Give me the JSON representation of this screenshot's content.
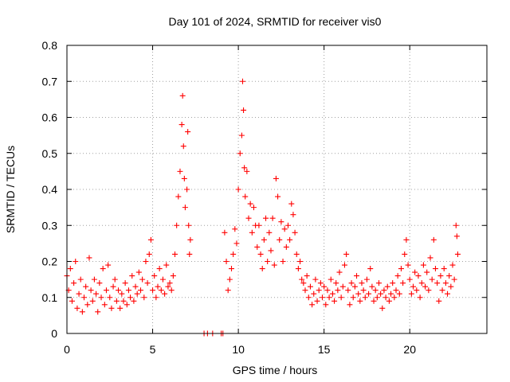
{
  "chart_data": {
    "type": "scatter",
    "title": "Day 101 of 2024, SRMTID for receiver vis0",
    "xlabel": "GPS time / hours",
    "ylabel": "SRMTID / TECUs",
    "xlim": [
      0,
      24.5
    ],
    "ylim": [
      0,
      0.8
    ],
    "xticks": [
      0,
      5,
      10,
      15,
      20
    ],
    "xtick_labels": [
      "0",
      "5",
      "10",
      "15",
      "20"
    ],
    "yticks": [
      0,
      0.1,
      0.2,
      0.3,
      0.4,
      0.5,
      0.6,
      0.7,
      0.8
    ],
    "ytick_labels": [
      "0",
      "0.1",
      "0.2",
      "0.3",
      "0.4",
      "0.5",
      "0.6",
      "0.7",
      "0.8"
    ],
    "grid": true,
    "marker": "+",
    "color": "#ff0000",
    "series": [
      {
        "name": "vis0",
        "points": [
          [
            0.0,
            0.16
          ],
          [
            0.1,
            0.12
          ],
          [
            0.2,
            0.18
          ],
          [
            0.3,
            0.09
          ],
          [
            0.4,
            0.14
          ],
          [
            0.5,
            0.2
          ],
          [
            0.6,
            0.07
          ],
          [
            0.7,
            0.11
          ],
          [
            0.8,
            0.15
          ],
          [
            0.9,
            0.06
          ],
          [
            1.0,
            0.1
          ],
          [
            1.1,
            0.13
          ],
          [
            1.2,
            0.08
          ],
          [
            1.3,
            0.21
          ],
          [
            1.4,
            0.12
          ],
          [
            1.5,
            0.09
          ],
          [
            1.6,
            0.15
          ],
          [
            1.7,
            0.11
          ],
          [
            1.8,
            0.06
          ],
          [
            1.9,
            0.14
          ],
          [
            2.0,
            0.1
          ],
          [
            2.1,
            0.18
          ],
          [
            2.2,
            0.08
          ],
          [
            2.3,
            0.12
          ],
          [
            2.4,
            0.19
          ],
          [
            2.5,
            0.1
          ],
          [
            2.6,
            0.07
          ],
          [
            2.7,
            0.13
          ],
          [
            2.8,
            0.15
          ],
          [
            2.9,
            0.09
          ],
          [
            3.0,
            0.12
          ],
          [
            3.1,
            0.07
          ],
          [
            3.2,
            0.11
          ],
          [
            3.3,
            0.09
          ],
          [
            3.4,
            0.14
          ],
          [
            3.5,
            0.08
          ],
          [
            3.6,
            0.12
          ],
          [
            3.7,
            0.1
          ],
          [
            3.8,
            0.16
          ],
          [
            3.9,
            0.09
          ],
          [
            4.0,
            0.13
          ],
          [
            4.1,
            0.11
          ],
          [
            4.2,
            0.17
          ],
          [
            4.3,
            0.12
          ],
          [
            4.4,
            0.15
          ],
          [
            4.5,
            0.1
          ],
          [
            4.6,
            0.2
          ],
          [
            4.7,
            0.14
          ],
          [
            4.8,
            0.22
          ],
          [
            4.9,
            0.26
          ],
          [
            5.0,
            0.12
          ],
          [
            5.1,
            0.16
          ],
          [
            5.2,
            0.1
          ],
          [
            5.3,
            0.13
          ],
          [
            5.4,
            0.18
          ],
          [
            5.5,
            0.12
          ],
          [
            5.6,
            0.15
          ],
          [
            5.7,
            0.11
          ],
          [
            5.8,
            0.19
          ],
          [
            5.9,
            0.13
          ],
          [
            6.0,
            0.14
          ],
          [
            6.1,
            0.12
          ],
          [
            6.2,
            0.16
          ],
          [
            6.3,
            0.22
          ],
          [
            6.4,
            0.3
          ],
          [
            6.5,
            0.38
          ],
          [
            6.6,
            0.45
          ],
          [
            6.7,
            0.58
          ],
          [
            6.75,
            0.66
          ],
          [
            6.8,
            0.52
          ],
          [
            6.85,
            0.43
          ],
          [
            6.9,
            0.35
          ],
          [
            7.0,
            0.4
          ],
          [
            7.05,
            0.56
          ],
          [
            7.1,
            0.3
          ],
          [
            7.15,
            0.22
          ],
          [
            7.2,
            0.26
          ],
          [
            8.0,
            0.0
          ],
          [
            8.2,
            0.0
          ],
          [
            8.5,
            0.0
          ],
          [
            9.0,
            0.0
          ],
          [
            9.1,
            0.0
          ],
          [
            9.2,
            0.28
          ],
          [
            9.3,
            0.2
          ],
          [
            9.4,
            0.12
          ],
          [
            9.5,
            0.15
          ],
          [
            9.6,
            0.18
          ],
          [
            9.7,
            0.22
          ],
          [
            9.8,
            0.29
          ],
          [
            9.9,
            0.25
          ],
          [
            10.0,
            0.4
          ],
          [
            10.1,
            0.5
          ],
          [
            10.2,
            0.55
          ],
          [
            10.25,
            0.7
          ],
          [
            10.3,
            0.62
          ],
          [
            10.35,
            0.46
          ],
          [
            10.4,
            0.38
          ],
          [
            10.5,
            0.45
          ],
          [
            10.6,
            0.32
          ],
          [
            10.7,
            0.36
          ],
          [
            10.8,
            0.28
          ],
          [
            10.9,
            0.35
          ],
          [
            11.0,
            0.3
          ],
          [
            11.1,
            0.24
          ],
          [
            11.2,
            0.3
          ],
          [
            11.3,
            0.22
          ],
          [
            11.4,
            0.18
          ],
          [
            11.5,
            0.26
          ],
          [
            11.6,
            0.32
          ],
          [
            11.7,
            0.2
          ],
          [
            11.8,
            0.28
          ],
          [
            11.9,
            0.23
          ],
          [
            12.0,
            0.32
          ],
          [
            12.1,
            0.19
          ],
          [
            12.2,
            0.43
          ],
          [
            12.3,
            0.38
          ],
          [
            12.4,
            0.26
          ],
          [
            12.5,
            0.31
          ],
          [
            12.6,
            0.2
          ],
          [
            12.7,
            0.29
          ],
          [
            12.8,
            0.24
          ],
          [
            12.9,
            0.3
          ],
          [
            13.0,
            0.26
          ],
          [
            13.1,
            0.36
          ],
          [
            13.2,
            0.33
          ],
          [
            13.3,
            0.28
          ],
          [
            13.4,
            0.22
          ],
          [
            13.5,
            0.18
          ],
          [
            13.6,
            0.2
          ],
          [
            13.7,
            0.15
          ],
          [
            13.8,
            0.14
          ],
          [
            13.9,
            0.12
          ],
          [
            14.0,
            0.16
          ],
          [
            14.1,
            0.1
          ],
          [
            14.2,
            0.13
          ],
          [
            14.3,
            0.08
          ],
          [
            14.4,
            0.11
          ],
          [
            14.5,
            0.15
          ],
          [
            14.6,
            0.09
          ],
          [
            14.7,
            0.12
          ],
          [
            14.8,
            0.14
          ],
          [
            14.9,
            0.1
          ],
          [
            15.0,
            0.13
          ],
          [
            15.1,
            0.08
          ],
          [
            15.2,
            0.12
          ],
          [
            15.3,
            0.1
          ],
          [
            15.4,
            0.15
          ],
          [
            15.5,
            0.11
          ],
          [
            15.6,
            0.09
          ],
          [
            15.7,
            0.14
          ],
          [
            15.8,
            0.12
          ],
          [
            15.9,
            0.17
          ],
          [
            16.0,
            0.1
          ],
          [
            16.1,
            0.13
          ],
          [
            16.2,
            0.19
          ],
          [
            16.3,
            0.22
          ],
          [
            16.4,
            0.12
          ],
          [
            16.5,
            0.08
          ],
          [
            16.6,
            0.14
          ],
          [
            16.7,
            0.1
          ],
          [
            16.8,
            0.13
          ],
          [
            16.9,
            0.16
          ],
          [
            17.0,
            0.11
          ],
          [
            17.1,
            0.09
          ],
          [
            17.2,
            0.14
          ],
          [
            17.3,
            0.12
          ],
          [
            17.4,
            0.1
          ],
          [
            17.5,
            0.15
          ],
          [
            17.6,
            0.11
          ],
          [
            17.7,
            0.18
          ],
          [
            17.8,
            0.13
          ],
          [
            17.9,
            0.09
          ],
          [
            18.0,
            0.12
          ],
          [
            18.1,
            0.1
          ],
          [
            18.2,
            0.14
          ],
          [
            18.3,
            0.11
          ],
          [
            18.4,
            0.07
          ],
          [
            18.5,
            0.12
          ],
          [
            18.6,
            0.1
          ],
          [
            18.7,
            0.13
          ],
          [
            18.8,
            0.09
          ],
          [
            18.9,
            0.11
          ],
          [
            19.0,
            0.14
          ],
          [
            19.1,
            0.1
          ],
          [
            19.2,
            0.12
          ],
          [
            19.3,
            0.16
          ],
          [
            19.4,
            0.11
          ],
          [
            19.5,
            0.18
          ],
          [
            19.6,
            0.14
          ],
          [
            19.7,
            0.22
          ],
          [
            19.8,
            0.26
          ],
          [
            19.9,
            0.19
          ],
          [
            20.0,
            0.15
          ],
          [
            20.1,
            0.11
          ],
          [
            20.2,
            0.13
          ],
          [
            20.3,
            0.17
          ],
          [
            20.4,
            0.12
          ],
          [
            20.5,
            0.16
          ],
          [
            20.6,
            0.1
          ],
          [
            20.7,
            0.14
          ],
          [
            20.8,
            0.19
          ],
          [
            20.9,
            0.13
          ],
          [
            21.0,
            0.17
          ],
          [
            21.1,
            0.12
          ],
          [
            21.2,
            0.21
          ],
          [
            21.3,
            0.15
          ],
          [
            21.4,
            0.26
          ],
          [
            21.5,
            0.18
          ],
          [
            21.6,
            0.14
          ],
          [
            21.7,
            0.09
          ],
          [
            21.8,
            0.16
          ],
          [
            21.9,
            0.12
          ],
          [
            22.0,
            0.18
          ],
          [
            22.1,
            0.14
          ],
          [
            22.2,
            0.11
          ],
          [
            22.3,
            0.16
          ],
          [
            22.4,
            0.13
          ],
          [
            22.5,
            0.19
          ],
          [
            22.6,
            0.15
          ],
          [
            22.7,
            0.3
          ],
          [
            22.75,
            0.27
          ],
          [
            22.8,
            0.22
          ]
        ]
      }
    ]
  }
}
